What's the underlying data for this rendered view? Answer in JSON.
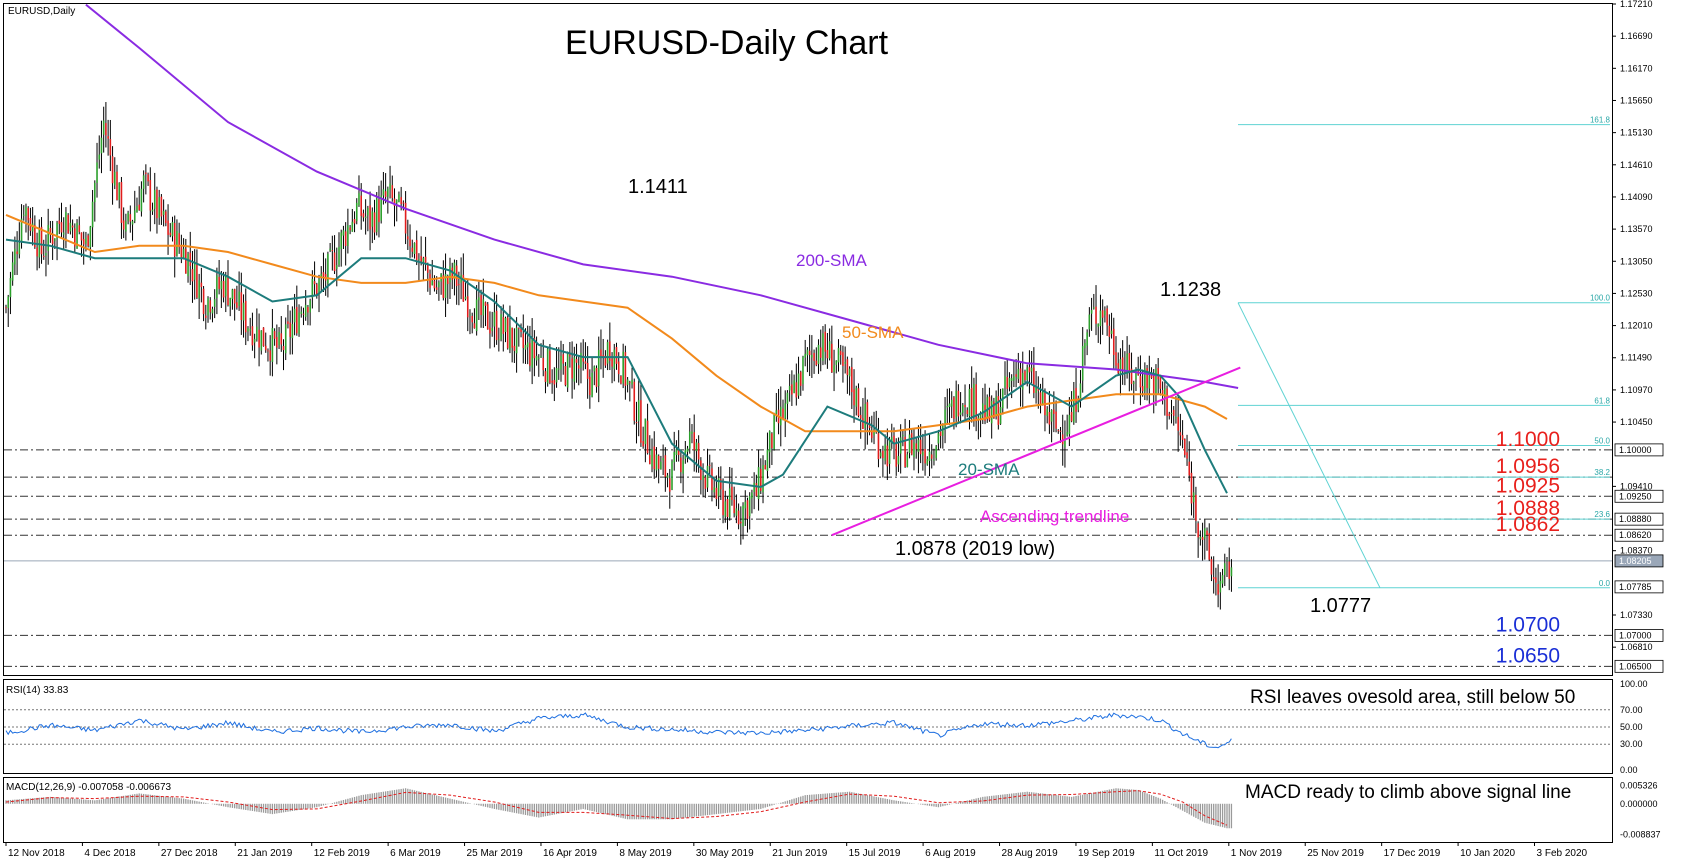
{
  "chart_data": {
    "type": "candlestick",
    "title": "EURUSD-Daily Chart",
    "symbol_label": "EURUSD,Daily",
    "date_labels": [
      "12 Nov 2018",
      "4 Dec 2018",
      "27 Dec 2018",
      "21 Jan 2019",
      "12 Feb 2019",
      "6 Mar 2019",
      "25 Mar 2019",
      "16 Apr 2019",
      "8 May 2019",
      "30 May 2019",
      "21 Jun 2019",
      "15 Jul 2019",
      "6 Aug 2019",
      "28 Aug 2019",
      "19 Sep 2019",
      "11 Oct 2019",
      "1 Nov 2019",
      "25 Nov 2019",
      "17 Dec 2019",
      "10 Jan 2020",
      "3 Feb 2020"
    ],
    "price_axis_labels": [
      "1.17210",
      "1.16690",
      "1.16170",
      "1.15650",
      "1.15130",
      "1.14610",
      "1.14090",
      "1.13570",
      "1.13050",
      "1.12530",
      "1.12010",
      "1.11490",
      "1.10970",
      "1.10450",
      "1.09410",
      "1.08370",
      "1.07330",
      "1.06810"
    ],
    "price_axis_boxes": [
      "1.10000",
      "1.09250",
      "1.08880",
      "1.08620",
      "1.08205",
      "1.07785",
      "1.07000",
      "1.06500"
    ],
    "ylim": [
      1.0636,
      1.1721
    ],
    "current_price": 1.08205,
    "levels": [
      {
        "price": 1.1,
        "label": "1.1000",
        "color": "#e8201c"
      },
      {
        "price": 1.0956,
        "label": "1.0956",
        "color": "#e8201c"
      },
      {
        "price": 1.0925,
        "label": "1.0925",
        "color": "#e8201c"
      },
      {
        "price": 1.0888,
        "label": "1.0888",
        "color": "#e8201c"
      },
      {
        "price": 1.0862,
        "label": "1.0862",
        "color": "#e8201c"
      },
      {
        "price": 1.07,
        "label": "1.0700",
        "color": "#1a2fd6"
      },
      {
        "price": 1.065,
        "label": "1.0650",
        "color": "#1a2fd6"
      }
    ],
    "fibonacci": [
      {
        "ratio": "161.8",
        "price": 1.1526
      },
      {
        "ratio": "100.0",
        "price": 1.1238
      },
      {
        "ratio": "61.8",
        "price": 1.1072
      },
      {
        "ratio": "50.0",
        "price": 1.1007
      },
      {
        "ratio": "38.2",
        "price": 1.0956
      },
      {
        "ratio": "23.6",
        "price": 1.0888
      },
      {
        "ratio": "0.0",
        "price": 1.0777
      }
    ],
    "annotations": {
      "high_2019": "1.1411",
      "swing_high": "1.1238",
      "low_2019": "1.0878 (2019 low)",
      "recent_low": "1.0777",
      "sma200": "200-SMA",
      "sma50": "50-SMA",
      "sma20": "20-SMA",
      "trendline": "Ascending trendline"
    },
    "price_path": [
      [
        0,
        1.123
      ],
      [
        8,
        1.14
      ],
      [
        16,
        1.132
      ],
      [
        26,
        1.138
      ],
      [
        36,
        1.133
      ],
      [
        44,
        1.153
      ],
      [
        54,
        1.135
      ],
      [
        62,
        1.143
      ],
      [
        72,
        1.136
      ],
      [
        82,
        1.131
      ],
      [
        90,
        1.124
      ],
      [
        98,
        1.127
      ],
      [
        108,
        1.121
      ],
      [
        116,
        1.118
      ],
      [
        124,
        1.116
      ],
      [
        134,
        1.124
      ],
      [
        144,
        1.128
      ],
      [
        150,
        1.133
      ],
      [
        158,
        1.139
      ],
      [
        164,
        1.137
      ],
      [
        172,
        1.141
      ],
      [
        178,
        1.138
      ],
      [
        186,
        1.131
      ],
      [
        194,
        1.126
      ],
      [
        202,
        1.128
      ],
      [
        212,
        1.122
      ],
      [
        222,
        1.12
      ],
      [
        230,
        1.117
      ],
      [
        240,
        1.115
      ],
      [
        248,
        1.112
      ],
      [
        256,
        1.114
      ],
      [
        264,
        1.111
      ],
      [
        272,
        1.117
      ],
      [
        278,
        1.113
      ],
      [
        286,
        1.104
      ],
      [
        294,
        1.097
      ],
      [
        300,
        1.096
      ],
      [
        308,
        1.102
      ],
      [
        316,
        1.095
      ],
      [
        322,
        1.092
      ],
      [
        330,
        1.09
      ],
      [
        338,
        1.093
      ],
      [
        346,
        1.103
      ],
      [
        352,
        1.107
      ],
      [
        360,
        1.114
      ],
      [
        366,
        1.117
      ],
      [
        372,
        1.115
      ],
      [
        380,
        1.111
      ],
      [
        388,
        1.104
      ],
      [
        396,
        1.1
      ],
      [
        402,
        1.099
      ],
      [
        408,
        1.101
      ],
      [
        416,
        1.1
      ],
      [
        422,
        1.104
      ],
      [
        430,
        1.109
      ],
      [
        436,
        1.108
      ],
      [
        444,
        1.105
      ],
      [
        450,
        1.109
      ],
      [
        456,
        1.113
      ],
      [
        462,
        1.111
      ],
      [
        468,
        1.106
      ],
      [
        474,
        1.103
      ],
      [
        480,
        1.105
      ],
      [
        488,
        1.121
      ],
      [
        494,
        1.123
      ],
      [
        500,
        1.116
      ],
      [
        506,
        1.112
      ],
      [
        512,
        1.112
      ],
      [
        518,
        1.111
      ],
      [
        524,
        1.107
      ],
      [
        530,
        1.101
      ],
      [
        536,
        1.09
      ],
      [
        540,
        1.085
      ],
      [
        544,
        1.079
      ],
      [
        548,
        1.078
      ],
      [
        552,
        1.082
      ]
    ],
    "sma20_path": [
      [
        0,
        1.134
      ],
      [
        20,
        1.133
      ],
      [
        40,
        1.131
      ],
      [
        60,
        1.131
      ],
      [
        80,
        1.131
      ],
      [
        100,
        1.128
      ],
      [
        120,
        1.124
      ],
      [
        140,
        1.125
      ],
      [
        160,
        1.131
      ],
      [
        180,
        1.131
      ],
      [
        200,
        1.129
      ],
      [
        220,
        1.124
      ],
      [
        240,
        1.117
      ],
      [
        260,
        1.115
      ],
      [
        280,
        1.115
      ],
      [
        300,
        1.101
      ],
      [
        320,
        1.095
      ],
      [
        340,
        1.094
      ],
      [
        350,
        1.096
      ],
      [
        370,
        1.107
      ],
      [
        390,
        1.104
      ],
      [
        400,
        1.101
      ],
      [
        420,
        1.103
      ],
      [
        440,
        1.106
      ],
      [
        460,
        1.111
      ],
      [
        480,
        1.107
      ],
      [
        500,
        1.112
      ],
      [
        510,
        1.113
      ],
      [
        520,
        1.112
      ],
      [
        530,
        1.108
      ],
      [
        540,
        1.1
      ],
      [
        550,
        1.093
      ]
    ],
    "sma50_path": [
      [
        0,
        1.138
      ],
      [
        20,
        1.135
      ],
      [
        40,
        1.132
      ],
      [
        60,
        1.133
      ],
      [
        80,
        1.133
      ],
      [
        100,
        1.132
      ],
      [
        120,
        1.13
      ],
      [
        140,
        1.128
      ],
      [
        160,
        1.127
      ],
      [
        180,
        1.127
      ],
      [
        200,
        1.128
      ],
      [
        220,
        1.127
      ],
      [
        240,
        1.125
      ],
      [
        260,
        1.124
      ],
      [
        280,
        1.123
      ],
      [
        300,
        1.118
      ],
      [
        320,
        1.112
      ],
      [
        340,
        1.107
      ],
      [
        360,
        1.103
      ],
      [
        380,
        1.103
      ],
      [
        400,
        1.103
      ],
      [
        420,
        1.104
      ],
      [
        440,
        1.105
      ],
      [
        460,
        1.107
      ],
      [
        480,
        1.108
      ],
      [
        500,
        1.109
      ],
      [
        520,
        1.109
      ],
      [
        540,
        1.107
      ],
      [
        550,
        1.105
      ]
    ],
    "sma200_path": [
      [
        36,
        1.172
      ],
      [
        60,
        1.165
      ],
      [
        100,
        1.153
      ],
      [
        140,
        1.145
      ],
      [
        180,
        1.139
      ],
      [
        220,
        1.134
      ],
      [
        260,
        1.13
      ],
      [
        300,
        1.128
      ],
      [
        340,
        1.125
      ],
      [
        380,
        1.121
      ],
      [
        420,
        1.117
      ],
      [
        460,
        1.114
      ],
      [
        500,
        1.113
      ],
      [
        520,
        1.112
      ],
      [
        540,
        1.111
      ],
      [
        555,
        1.11
      ]
    ],
    "trendline_path": [
      [
        372,
        1.0862
      ],
      [
        556,
        1.1133
      ]
    ],
    "rsi": {
      "label": "RSI(14) 33.83",
      "ylim": [
        0,
        100
      ],
      "ticks": [
        "100.00",
        "70.00",
        "50.00",
        "30.00",
        "0.00"
      ],
      "levels": [
        70,
        50,
        30
      ],
      "annotation": "RSI leaves ovesold area, still below 50",
      "values": [
        [
          0,
          43
        ],
        [
          20,
          52
        ],
        [
          40,
          46
        ],
        [
          60,
          58
        ],
        [
          80,
          47
        ],
        [
          100,
          55
        ],
        [
          120,
          44
        ],
        [
          140,
          49
        ],
        [
          160,
          44
        ],
        [
          180,
          50
        ],
        [
          200,
          53
        ],
        [
          220,
          45
        ],
        [
          240,
          60
        ],
        [
          260,
          64
        ],
        [
          280,
          50
        ],
        [
          300,
          47
        ],
        [
          320,
          44
        ],
        [
          340,
          43
        ],
        [
          360,
          46
        ],
        [
          380,
          51
        ],
        [
          400,
          55
        ],
        [
          420,
          40
        ],
        [
          440,
          54
        ],
        [
          460,
          52
        ],
        [
          480,
          57
        ],
        [
          500,
          64
        ],
        [
          510,
          62
        ],
        [
          520,
          58
        ],
        [
          530,
          42
        ],
        [
          540,
          30
        ],
        [
          545,
          26
        ],
        [
          550,
          31
        ],
        [
          552,
          34
        ]
      ]
    },
    "macd": {
      "label": "MACD(12,26,9) -0.007058 -0.006673",
      "ticks": [
        "0.005326",
        "0.000000",
        "-0.008837"
      ],
      "ylim": [
        -0.0105,
        0.0066
      ],
      "annotation": "MACD ready to climb above signal line",
      "values": [
        [
          0,
          0.001
        ],
        [
          20,
          0.002
        ],
        [
          40,
          0.001
        ],
        [
          60,
          0.003
        ],
        [
          80,
          0.0015
        ],
        [
          100,
          -0.001
        ],
        [
          120,
          -0.003
        ],
        [
          140,
          -0.001
        ],
        [
          160,
          0.0025
        ],
        [
          180,
          0.0045
        ],
        [
          200,
          0.0015
        ],
        [
          220,
          -0.0015
        ],
        [
          240,
          -0.004
        ],
        [
          260,
          -0.0015
        ],
        [
          280,
          -0.0045
        ],
        [
          300,
          -0.0045
        ],
        [
          320,
          -0.003
        ],
        [
          340,
          -0.0015
        ],
        [
          360,
          0.0025
        ],
        [
          380,
          0.0035
        ],
        [
          400,
          0.001
        ],
        [
          420,
          -0.001
        ],
        [
          440,
          0.002
        ],
        [
          460,
          0.0035
        ],
        [
          480,
          0.002
        ],
        [
          500,
          0.0045
        ],
        [
          510,
          0.004
        ],
        [
          520,
          0.0015
        ],
        [
          530,
          -0.002
        ],
        [
          540,
          -0.0055
        ],
        [
          550,
          -0.0071
        ]
      ],
      "signal": [
        [
          0,
          0.0005
        ],
        [
          20,
          0.0018
        ],
        [
          40,
          0.0015
        ],
        [
          60,
          0.0022
        ],
        [
          80,
          0.002
        ],
        [
          100,
          0.0005
        ],
        [
          120,
          -0.0017
        ],
        [
          140,
          -0.0015
        ],
        [
          160,
          0.0008
        ],
        [
          180,
          0.0033
        ],
        [
          200,
          0.0025
        ],
        [
          220,
          0.0005
        ],
        [
          240,
          -0.0025
        ],
        [
          260,
          -0.0025
        ],
        [
          280,
          -0.0033
        ],
        [
          300,
          -0.0043
        ],
        [
          320,
          -0.0037
        ],
        [
          340,
          -0.0023
        ],
        [
          360,
          0.0005
        ],
        [
          380,
          0.0028
        ],
        [
          400,
          0.0022
        ],
        [
          420,
          0.0003
        ],
        [
          440,
          0.0008
        ],
        [
          460,
          0.0025
        ],
        [
          480,
          0.0027
        ],
        [
          500,
          0.0035
        ],
        [
          510,
          0.0038
        ],
        [
          520,
          0.0028
        ],
        [
          530,
          0.0005
        ],
        [
          540,
          -0.0035
        ],
        [
          550,
          -0.0062
        ]
      ]
    }
  }
}
